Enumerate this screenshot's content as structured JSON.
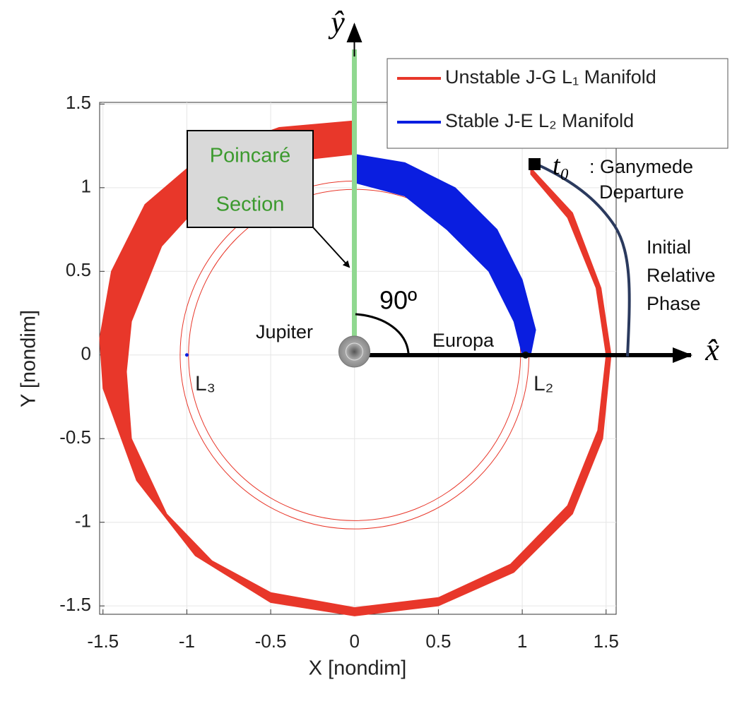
{
  "chart_data": {
    "type": "area",
    "xlabel": "X [nondim]",
    "ylabel": "Y [nondim]",
    "xlim": [
      -1.52,
      1.56
    ],
    "ylim": [
      -1.55,
      1.51
    ],
    "xticks": [
      -1.5,
      -1,
      -0.5,
      0,
      0.5,
      1,
      1.5
    ],
    "yticks": [
      -1.5,
      -1,
      -0.5,
      0,
      0.5,
      1,
      1.5
    ],
    "grid": true,
    "legend": "upper right",
    "series": [
      {
        "name": "Unstable J-G L₁ Manifold",
        "color": "#e8372a",
        "x": [
          1.05,
          1.3,
          1.47,
          1.53,
          1.48,
          1.3,
          0.95,
          0.5,
          0,
          -0.5,
          -0.95,
          -1.3,
          -1.5,
          -1.52,
          -1.45,
          -1.25,
          -0.9,
          -0.45,
          0,
          0,
          -0.45,
          -0.85,
          -1.15,
          -1.33,
          -1.36,
          -1.33,
          -1.12,
          -0.85,
          -0.5,
          0,
          0.5,
          0.93,
          1.27,
          1.45,
          1.5,
          1.44,
          1.27,
          1.05
        ],
        "y": [
          1.12,
          0.85,
          0.4,
          0,
          -0.5,
          -0.95,
          -1.3,
          -1.5,
          -1.56,
          -1.48,
          -1.2,
          -0.75,
          -0.2,
          0.1,
          0.5,
          0.9,
          1.2,
          1.36,
          1.4,
          1.2,
          1.15,
          0.98,
          0.65,
          0.2,
          -0.1,
          -0.5,
          -0.95,
          -1.23,
          -1.42,
          -1.51,
          -1.45,
          -1.25,
          -0.9,
          -0.45,
          0,
          0.4,
          0.82,
          1.08
        ]
      },
      {
        "name": "Stable J-E L₂ Manifold",
        "color": "#0a1ee0",
        "x": [
          0,
          0.3,
          0.6,
          0.85,
          1.0,
          1.08,
          1.05,
          1.0,
          0.95,
          0.8,
          0.55,
          0.3,
          0
        ],
        "y": [
          1.2,
          1.15,
          1.0,
          0.75,
          0.45,
          0.15,
          0,
          0,
          0.2,
          0.5,
          0.75,
          0.95,
          1.03
        ]
      }
    ],
    "zero_velocity_radii": [
      0.99,
      1.04
    ],
    "zero_velocity_color": "#e8372a",
    "points": [
      {
        "x": -1.0,
        "y": 0,
        "color": "#0a1ee0"
      },
      {
        "x": 1.02,
        "y": 0,
        "color": "#111111"
      }
    ],
    "annotations": {
      "y_hat": "ŷ",
      "x_hat": "x̂",
      "poincare": [
        "Poincaré",
        "Section"
      ],
      "angle": "90º",
      "jupiter": "Jupiter",
      "europa": "Europa",
      "l3": "L₃",
      "l2": "L₂",
      "t0": "t₀",
      "departure": [
        ": Ganymede",
        "Departure"
      ],
      "phase": [
        "Initial",
        "Relative",
        "Phase"
      ]
    }
  }
}
